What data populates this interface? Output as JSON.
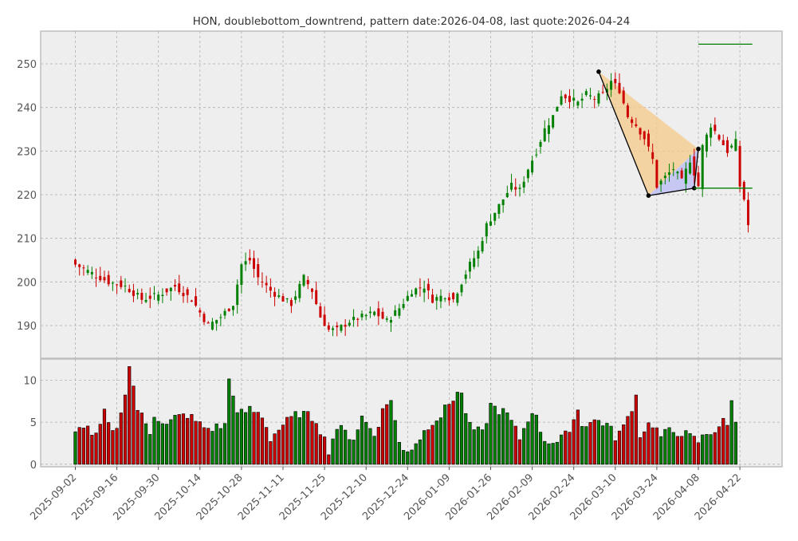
{
  "chart_data": {
    "type": "candlestick",
    "title": "HON, doublebottom_downtrend, pattern date:2026-04-08, last quote:2026-04-24",
    "grid": true,
    "colors": {
      "up": "#008000",
      "down": "#cc0000",
      "panel": "#eeeeee",
      "line": "#000000",
      "level": "#008000"
    },
    "price_axis": {
      "ylim": [
        182.5,
        257.5
      ],
      "ticks": [
        190,
        200,
        210,
        220,
        230,
        240,
        250
      ]
    },
    "volume_axis": {
      "ylim": [
        -0.3,
        12.5
      ],
      "ticks": [
        0,
        5,
        10
      ]
    },
    "x_ticks": [
      "2025-09-02",
      "2025-09-16",
      "2025-09-30",
      "2025-10-14",
      "2025-10-28",
      "2025-11-11",
      "2025-11-25",
      "2025-12-10",
      "2025-12-24",
      "2026-01-09",
      "2026-01-26",
      "2026-02-09",
      "2026-02-24",
      "2026-03-10",
      "2026-03-24",
      "2026-04-08",
      "2026-04-22"
    ],
    "x_tick_index": [
      0,
      10,
      20,
      30,
      40,
      50,
      60,
      70,
      80,
      90,
      100,
      110,
      120,
      130,
      140,
      150,
      160
    ],
    "num_bars": 163,
    "dates": [
      "2025-09-02",
      "2025-09-16",
      "2025-09-30",
      "2025-10-14",
      "2025-10-28",
      "2025-11-11",
      "2025-11-25",
      "2025-12-10",
      "2025-12-24",
      "2026-01-09",
      "2026-01-26",
      "2026-02-09",
      "2026-02-24",
      "2026-03-10",
      "2026-03-24",
      "2026-04-08",
      "2026-04-22"
    ],
    "close_anchors": [
      {
        "i": 0,
        "c": 204
      },
      {
        "i": 4,
        "c": 202
      },
      {
        "i": 8,
        "c": 200
      },
      {
        "i": 12,
        "c": 199
      },
      {
        "i": 16,
        "c": 196
      },
      {
        "i": 20,
        "c": 197
      },
      {
        "i": 24,
        "c": 199
      },
      {
        "i": 28,
        "c": 196
      },
      {
        "i": 30,
        "c": 193
      },
      {
        "i": 32,
        "c": 190
      },
      {
        "i": 35,
        "c": 192
      },
      {
        "i": 38,
        "c": 195
      },
      {
        "i": 40,
        "c": 204
      },
      {
        "i": 42,
        "c": 205
      },
      {
        "i": 44,
        "c": 201
      },
      {
        "i": 47,
        "c": 198
      },
      {
        "i": 50,
        "c": 196
      },
      {
        "i": 52,
        "c": 195
      },
      {
        "i": 55,
        "c": 201
      },
      {
        "i": 57,
        "c": 198
      },
      {
        "i": 59,
        "c": 192
      },
      {
        "i": 61,
        "c": 189
      },
      {
        "i": 63,
        "c": 189
      },
      {
        "i": 66,
        "c": 191
      },
      {
        "i": 69,
        "c": 192
      },
      {
        "i": 72,
        "c": 193
      },
      {
        "i": 75,
        "c": 191
      },
      {
        "i": 78,
        "c": 194
      },
      {
        "i": 81,
        "c": 198
      },
      {
        "i": 84,
        "c": 199
      },
      {
        "i": 86,
        "c": 196
      },
      {
        "i": 89,
        "c": 197
      },
      {
        "i": 91,
        "c": 196
      },
      {
        "i": 93,
        "c": 200
      },
      {
        "i": 95,
        "c": 204
      },
      {
        "i": 97,
        "c": 207
      },
      {
        "i": 99,
        "c": 213
      },
      {
        "i": 101,
        "c": 216
      },
      {
        "i": 103,
        "c": 219
      },
      {
        "i": 105,
        "c": 222
      },
      {
        "i": 107,
        "c": 221
      },
      {
        "i": 109,
        "c": 226
      },
      {
        "i": 111,
        "c": 230
      },
      {
        "i": 113,
        "c": 235
      },
      {
        "i": 115,
        "c": 238
      },
      {
        "i": 117,
        "c": 243
      },
      {
        "i": 119,
        "c": 242
      },
      {
        "i": 121,
        "c": 241
      },
      {
        "i": 123,
        "c": 243
      },
      {
        "i": 125,
        "c": 242
      },
      {
        "i": 127,
        "c": 243
      },
      {
        "i": 129,
        "c": 246
      },
      {
        "i": 131,
        "c": 244
      },
      {
        "i": 133,
        "c": 238
      },
      {
        "i": 135,
        "c": 236
      },
      {
        "i": 137,
        "c": 233
      },
      {
        "i": 139,
        "c": 228
      },
      {
        "i": 140,
        "c": 222
      },
      {
        "i": 142,
        "c": 224
      },
      {
        "i": 144,
        "c": 226
      },
      {
        "i": 146,
        "c": 223
      },
      {
        "i": 148,
        "c": 228
      },
      {
        "i": 150,
        "c": 222
      },
      {
        "i": 151,
        "c": 231
      },
      {
        "i": 153,
        "c": 236
      },
      {
        "i": 155,
        "c": 233
      },
      {
        "i": 157,
        "c": 230
      },
      {
        "i": 159,
        "c": 232
      },
      {
        "i": 160,
        "c": 222
      },
      {
        "i": 161,
        "c": 219
      },
      {
        "i": 162,
        "c": 213
      }
    ],
    "volume_anchors": [
      {
        "i": 0,
        "v": 3.5
      },
      {
        "i": 2,
        "v": 4.8
      },
      {
        "i": 5,
        "v": 3.2
      },
      {
        "i": 7,
        "v": 6.0
      },
      {
        "i": 9,
        "v": 3.5
      },
      {
        "i": 11,
        "v": 5.8
      },
      {
        "i": 13,
        "v": 11.8
      },
      {
        "i": 15,
        "v": 6.6
      },
      {
        "i": 18,
        "v": 3.8
      },
      {
        "i": 19,
        "v": 6.0
      },
      {
        "i": 22,
        "v": 4.6
      },
      {
        "i": 24,
        "v": 5.5
      },
      {
        "i": 27,
        "v": 5.9
      },
      {
        "i": 30,
        "v": 4.7
      },
      {
        "i": 32,
        "v": 4.2
      },
      {
        "i": 36,
        "v": 4.6
      },
      {
        "i": 37,
        "v": 10.1
      },
      {
        "i": 38,
        "v": 8.6
      },
      {
        "i": 39,
        "v": 5.8
      },
      {
        "i": 42,
        "v": 6.5
      },
      {
        "i": 45,
        "v": 5.8
      },
      {
        "i": 47,
        "v": 3.1
      },
      {
        "i": 50,
        "v": 4.7
      },
      {
        "i": 54,
        "v": 6.1
      },
      {
        "i": 58,
        "v": 5.3
      },
      {
        "i": 61,
        "v": 1.7
      },
      {
        "i": 63,
        "v": 4.4
      },
      {
        "i": 67,
        "v": 3.1
      },
      {
        "i": 69,
        "v": 5.6
      },
      {
        "i": 72,
        "v": 3.6
      },
      {
        "i": 74,
        "v": 6.3
      },
      {
        "i": 76,
        "v": 7.9
      },
      {
        "i": 78,
        "v": 2.4
      },
      {
        "i": 79,
        "v": 1.6
      },
      {
        "i": 81,
        "v": 2.0
      },
      {
        "i": 83,
        "v": 3.2
      },
      {
        "i": 86,
        "v": 5.2
      },
      {
        "i": 88,
        "v": 5.8
      },
      {
        "i": 92,
        "v": 8.6
      },
      {
        "i": 93,
        "v": 8.2
      },
      {
        "i": 95,
        "v": 4.4
      },
      {
        "i": 98,
        "v": 3.6
      },
      {
        "i": 100,
        "v": 7.0
      },
      {
        "i": 101,
        "v": 6.7
      },
      {
        "i": 104,
        "v": 5.9
      },
      {
        "i": 107,
        "v": 3.1
      },
      {
        "i": 110,
        "v": 6.5
      },
      {
        "i": 111,
        "v": 5.4
      },
      {
        "i": 113,
        "v": 2.9
      },
      {
        "i": 116,
        "v": 2.6
      },
      {
        "i": 118,
        "v": 3.4
      },
      {
        "i": 121,
        "v": 6.4
      },
      {
        "i": 122,
        "v": 4.8
      },
      {
        "i": 126,
        "v": 5.2
      },
      {
        "i": 128,
        "v": 4.7
      },
      {
        "i": 130,
        "v": 3.3
      },
      {
        "i": 132,
        "v": 4.3
      },
      {
        "i": 135,
        "v": 8.1
      },
      {
        "i": 136,
        "v": 3.6
      },
      {
        "i": 138,
        "v": 4.7
      },
      {
        "i": 139,
        "v": 4.8
      },
      {
        "i": 141,
        "v": 3.3
      },
      {
        "i": 143,
        "v": 3.9
      },
      {
        "i": 146,
        "v": 3.8
      },
      {
        "i": 148,
        "v": 3.2
      },
      {
        "i": 150,
        "v": 2.7
      },
      {
        "i": 152,
        "v": 3.6
      },
      {
        "i": 154,
        "v": 4.1
      },
      {
        "i": 156,
        "v": 5.0
      },
      {
        "i": 157,
        "v": 4.5
      },
      {
        "i": 158,
        "v": 8.0
      },
      {
        "i": 159,
        "v": 4.7
      }
    ],
    "pattern": {
      "points": [
        {
          "i": 126,
          "price": 248.2
        },
        {
          "i": 138,
          "price": 219.8
        },
        {
          "i": 149,
          "price": 221.5
        },
        {
          "i": 150,
          "price": 230.5
        }
      ],
      "upper_triangle_color": "#f5c98a",
      "lower_triangle_color": "#b9b9f5"
    },
    "levels": [
      {
        "price": 254.5,
        "from_i": 150,
        "to_i": 163
      },
      {
        "price": 221.5,
        "from_i": 149,
        "to_i": 163
      }
    ]
  }
}
